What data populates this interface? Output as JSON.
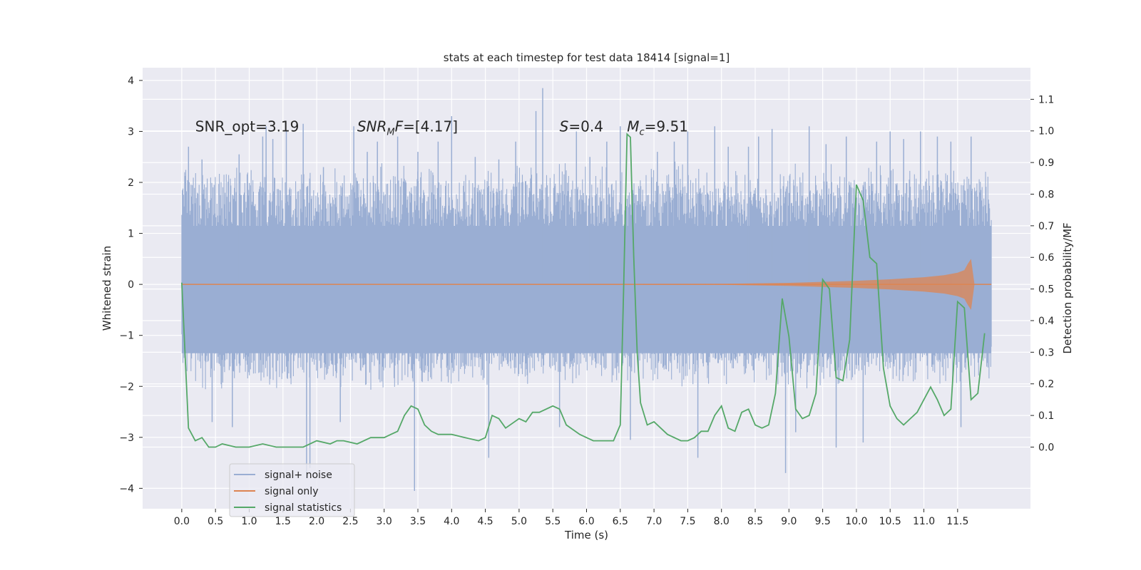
{
  "chart_data": {
    "type": "line",
    "title": "stats at each timestep for test data 18414 [signal=1]",
    "xlabel": "Time (s)",
    "ylabel_left": "Whitened strain",
    "ylabel_right": "Detection probability/MF",
    "xlim": [
      -0.58,
      12.58
    ],
    "ylim_left": [
      -4.4,
      4.25
    ],
    "ylim_right": [
      -0.195,
      1.2
    ],
    "x_ticks": [
      0.0,
      0.5,
      1.0,
      1.5,
      2.0,
      2.5,
      3.0,
      3.5,
      4.0,
      4.5,
      5.0,
      5.5,
      6.0,
      6.5,
      7.0,
      7.5,
      8.0,
      8.5,
      9.0,
      9.5,
      10.0,
      10.5,
      11.0,
      11.5
    ],
    "x_tick_labels": [
      "0.0",
      "0.5",
      "1.0",
      "1.5",
      "2.0",
      "2.5",
      "3.0",
      "3.5",
      "4.0",
      "4.5",
      "5.0",
      "5.5",
      "6.0",
      "6.5",
      "7.0",
      "7.5",
      "8.0",
      "8.5",
      "9.0",
      "9.5",
      "10.0",
      "10.5",
      "11.0",
      "11.5"
    ],
    "y_left_ticks": [
      -4,
      -3,
      -2,
      -1,
      0,
      1,
      2,
      3,
      4
    ],
    "y_left_tick_labels": [
      "−4",
      "−3",
      "−2",
      "−1",
      "0",
      "1",
      "2",
      "3",
      "4"
    ],
    "y_right_ticks": [
      0.0,
      0.1,
      0.2,
      0.3,
      0.4,
      0.5,
      0.6,
      0.7,
      0.8,
      0.9,
      1.0,
      1.1
    ],
    "y_right_tick_labels": [
      "0.0",
      "0.1",
      "0.2",
      "0.3",
      "0.4",
      "0.5",
      "0.6",
      "0.7",
      "0.8",
      "0.9",
      "1.0",
      "1.1"
    ],
    "grid": true,
    "legend_position": "lower-left",
    "colors": {
      "background": "#eaeaf2",
      "grid": "#ffffff",
      "signal_noise": "#9aaed3",
      "signal_only": "#dd8452",
      "signal_statistics": "#55a868"
    },
    "annotations": [
      {
        "text": "SNR_opt=3.19",
        "x": 0.2,
        "y": 3.1
      },
      {
        "text_base": "SNR",
        "text_sub": "M",
        "text_rest": "F=[4.17]",
        "x": 2.6,
        "y": 3.1
      },
      {
        "text_base": "S",
        "text_rest": "=0.4",
        "x": 5.6,
        "y": 3.1
      },
      {
        "text_base": "M",
        "text_sub": "c",
        "text_rest": "=9.51",
        "x": 6.6,
        "y": 3.1
      }
    ],
    "series": [
      {
        "name": "signal+ noise",
        "axis": "left",
        "x_range": [
          0.0,
          12.0
        ],
        "envelope_upper": [
          1.8,
          1.7,
          1.9,
          1.8,
          1.8,
          1.75,
          1.9,
          1.8,
          1.7,
          1.85,
          1.8,
          1.9,
          1.8,
          1.75,
          1.8,
          1.9,
          1.8,
          1.75,
          1.8,
          1.85,
          1.9,
          1.8,
          1.75,
          1.8,
          1.8
        ],
        "envelope_lower": [
          -1.4,
          -1.5,
          -1.45,
          -1.5,
          -1.4,
          -1.5,
          -1.45,
          -1.5,
          -1.4,
          -1.45,
          -1.5,
          -1.45,
          -1.4,
          -1.5,
          -1.45,
          -1.5,
          -1.4,
          -1.45,
          -1.5,
          -1.45,
          -1.4,
          -1.5,
          -1.45,
          -1.5,
          -1.4
        ],
        "spikes": [
          [
            0.1,
            2.7
          ],
          [
            0.3,
            2.45
          ],
          [
            0.45,
            -2.7
          ],
          [
            0.75,
            -2.8
          ],
          [
            0.85,
            2.55
          ],
          [
            1.2,
            2.9
          ],
          [
            1.25,
            3.1
          ],
          [
            1.35,
            2.85
          ],
          [
            1.55,
            3.0
          ],
          [
            1.8,
            3.15
          ],
          [
            1.85,
            -3.8
          ],
          [
            1.9,
            -3.6
          ],
          [
            2.1,
            2.3
          ],
          [
            2.35,
            -2.7
          ],
          [
            2.55,
            3.1
          ],
          [
            2.75,
            2.6
          ],
          [
            2.9,
            2.8
          ],
          [
            3.2,
            2.9
          ],
          [
            3.45,
            -4.05
          ],
          [
            3.5,
            2.6
          ],
          [
            3.8,
            2.8
          ],
          [
            4.0,
            3.3
          ],
          [
            4.35,
            2.5
          ],
          [
            4.55,
            -3.4
          ],
          [
            4.7,
            2.45
          ],
          [
            4.95,
            2.8
          ],
          [
            5.25,
            3.4
          ],
          [
            5.35,
            3.85
          ],
          [
            5.6,
            -2.8
          ],
          [
            5.85,
            3.0
          ],
          [
            6.05,
            2.5
          ],
          [
            6.3,
            2.8
          ],
          [
            6.5,
            3.1
          ],
          [
            6.65,
            -3.05
          ],
          [
            7.05,
            2.6
          ],
          [
            7.3,
            2.8
          ],
          [
            7.5,
            3.0
          ],
          [
            7.65,
            -3.4
          ],
          [
            7.9,
            3.1
          ],
          [
            8.1,
            2.7
          ],
          [
            8.4,
            2.7
          ],
          [
            8.55,
            2.9
          ],
          [
            8.75,
            3.05
          ],
          [
            8.95,
            -3.7
          ],
          [
            9.1,
            -2.9
          ],
          [
            9.3,
            3.1
          ],
          [
            9.55,
            2.75
          ],
          [
            9.7,
            -3.2
          ],
          [
            9.85,
            2.9
          ],
          [
            10.1,
            -3.1
          ],
          [
            10.3,
            2.8
          ],
          [
            10.5,
            3.0
          ],
          [
            10.7,
            2.85
          ],
          [
            10.95,
            3.0
          ],
          [
            11.2,
            2.9
          ],
          [
            11.4,
            2.8
          ],
          [
            11.55,
            -2.8
          ],
          [
            11.7,
            2.9
          ]
        ]
      },
      {
        "name": "signal only",
        "axis": "left",
        "x": [
          0.0,
          8.0,
          9.0,
          10.0,
          10.5,
          11.0,
          11.3,
          11.5,
          11.6,
          11.65,
          11.7,
          11.75,
          12.0
        ],
        "amplitude": [
          0.0,
          0.01,
          0.03,
          0.07,
          0.1,
          0.14,
          0.18,
          0.23,
          0.28,
          0.4,
          0.5,
          0.0,
          0.0
        ]
      },
      {
        "name": "signal statistics",
        "axis": "right",
        "x": [
          0.0,
          0.1,
          0.2,
          0.3,
          0.4,
          0.5,
          0.6,
          0.8,
          1.0,
          1.2,
          1.4,
          1.6,
          1.8,
          2.0,
          2.2,
          2.3,
          2.4,
          2.6,
          2.8,
          2.9,
          3.0,
          3.1,
          3.2,
          3.3,
          3.4,
          3.5,
          3.6,
          3.7,
          3.8,
          4.0,
          4.2,
          4.4,
          4.5,
          4.6,
          4.7,
          4.8,
          5.0,
          5.1,
          5.2,
          5.3,
          5.5,
          5.6,
          5.7,
          5.9,
          6.0,
          6.1,
          6.3,
          6.4,
          6.5,
          6.55,
          6.6,
          6.65,
          6.7,
          6.75,
          6.8,
          6.9,
          7.0,
          7.2,
          7.4,
          7.5,
          7.6,
          7.7,
          7.8,
          7.9,
          8.0,
          8.1,
          8.2,
          8.3,
          8.4,
          8.5,
          8.6,
          8.7,
          8.8,
          8.9,
          9.0,
          9.1,
          9.2,
          9.3,
          9.4,
          9.5,
          9.6,
          9.7,
          9.8,
          9.9,
          10.0,
          10.1,
          10.2,
          10.3,
          10.4,
          10.5,
          10.6,
          10.7,
          10.8,
          10.9,
          11.0,
          11.1,
          11.2,
          11.3,
          11.4,
          11.5,
          11.6,
          11.7,
          11.8,
          11.9
        ],
        "values": [
          0.52,
          0.06,
          0.02,
          0.03,
          0.0,
          0.0,
          0.01,
          0.0,
          0.0,
          0.01,
          0.0,
          0.0,
          0.0,
          0.02,
          0.01,
          0.02,
          0.02,
          0.01,
          0.03,
          0.03,
          0.03,
          0.04,
          0.05,
          0.1,
          0.13,
          0.12,
          0.07,
          0.05,
          0.04,
          0.04,
          0.03,
          0.02,
          0.03,
          0.1,
          0.09,
          0.06,
          0.09,
          0.08,
          0.11,
          0.11,
          0.13,
          0.12,
          0.07,
          0.04,
          0.03,
          0.02,
          0.02,
          0.02,
          0.07,
          0.5,
          0.99,
          0.98,
          0.6,
          0.3,
          0.14,
          0.07,
          0.08,
          0.04,
          0.02,
          0.02,
          0.03,
          0.05,
          0.05,
          0.1,
          0.13,
          0.06,
          0.05,
          0.11,
          0.12,
          0.07,
          0.06,
          0.07,
          0.17,
          0.47,
          0.35,
          0.12,
          0.09,
          0.1,
          0.17,
          0.53,
          0.5,
          0.22,
          0.21,
          0.34,
          0.83,
          0.78,
          0.6,
          0.58,
          0.25,
          0.13,
          0.09,
          0.07,
          0.09,
          0.11,
          0.15,
          0.19,
          0.15,
          0.1,
          0.12,
          0.46,
          0.44,
          0.15,
          0.17,
          0.36
        ]
      }
    ]
  }
}
